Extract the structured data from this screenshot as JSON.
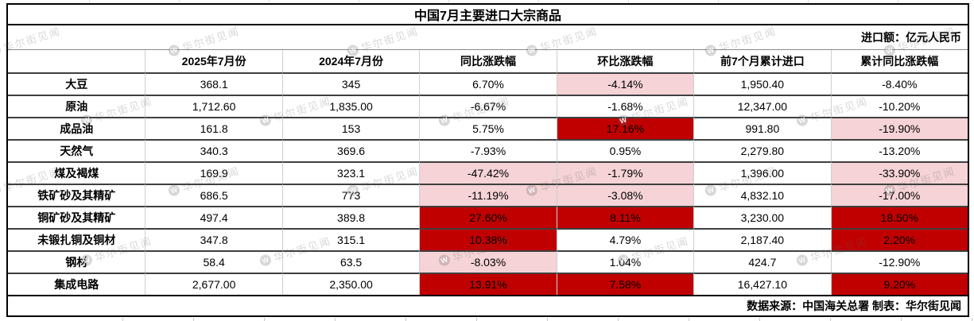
{
  "watermark": {
    "text": "华尔街见闻",
    "icon_letter": "W"
  },
  "colors": {
    "highlight_red": "#C00000",
    "highlight_pink": "#F5D3D6"
  },
  "chart_data": {
    "type": "table",
    "title": "中国7月主要进口大宗商品",
    "unit_note": "进口额：亿元人民币",
    "source_note": "数据来源：中国海关总署 制表：华尔街见闻",
    "columns": [
      "",
      "2025年7月份",
      "2024年7月份",
      "同比涨跌幅",
      "环比涨跌幅",
      "前7个月累计进口",
      "累计同比涨跌幅"
    ],
    "rows": [
      {
        "label": "大豆",
        "values": [
          "368.1",
          "345",
          "6.70%",
          "-4.14%",
          "1,950.40",
          "-8.40%"
        ],
        "highlights": [
          "",
          "",
          "",
          "pink",
          "",
          ""
        ]
      },
      {
        "label": "原油",
        "values": [
          "1,712.60",
          "1,835.00",
          "-6.67%",
          "-1.68%",
          "12,347.00",
          "-10.20%"
        ],
        "highlights": [
          "",
          "",
          "",
          "",
          "",
          ""
        ]
      },
      {
        "label": "成品油",
        "values": [
          "161.8",
          "153",
          "5.75%",
          "17.16%",
          "991.80",
          "-19.90%"
        ],
        "highlights": [
          "",
          "",
          "",
          "red",
          "",
          "pink"
        ]
      },
      {
        "label": "天然气",
        "values": [
          "340.3",
          "369.6",
          "-7.93%",
          "0.95%",
          "2,279.80",
          "-13.20%"
        ],
        "highlights": [
          "",
          "",
          "",
          "",
          "",
          ""
        ]
      },
      {
        "label": "煤及褐煤",
        "values": [
          "169.9",
          "323.1",
          "-47.42%",
          "-1.79%",
          "1,396.00",
          "-33.90%"
        ],
        "highlights": [
          "",
          "",
          "pink",
          "pink",
          "",
          "pink"
        ]
      },
      {
        "label": "铁矿砂及其精矿",
        "values": [
          "686.5",
          "773",
          "-11.19%",
          "-3.08%",
          "4,832.10",
          "-17.00%"
        ],
        "highlights": [
          "",
          "",
          "pink",
          "pink",
          "",
          "pink"
        ]
      },
      {
        "label": "铜矿砂及其精矿",
        "values": [
          "497.4",
          "389.8",
          "27.60%",
          "8.11%",
          "3,230.00",
          "18.50%"
        ],
        "highlights": [
          "",
          "",
          "red",
          "red",
          "",
          "red"
        ]
      },
      {
        "label": "未锻扎铜及铜材",
        "values": [
          "347.8",
          "315.1",
          "10.38%",
          "4.79%",
          "2,187.40",
          "2.20%"
        ],
        "highlights": [
          "",
          "",
          "red",
          "",
          "",
          "red"
        ]
      },
      {
        "label": "钢材",
        "values": [
          "58.4",
          "63.5",
          "-8.03%",
          "1.04%",
          "424.7",
          "-12.90%"
        ],
        "highlights": [
          "",
          "",
          "pink",
          "",
          "",
          ""
        ]
      },
      {
        "label": "集成电路",
        "values": [
          "2,677.00",
          "2,350.00",
          "13.91%",
          "7.58%",
          "16,427.10",
          "9.20%"
        ],
        "highlights": [
          "",
          "",
          "red",
          "red",
          "",
          "red"
        ]
      }
    ]
  }
}
